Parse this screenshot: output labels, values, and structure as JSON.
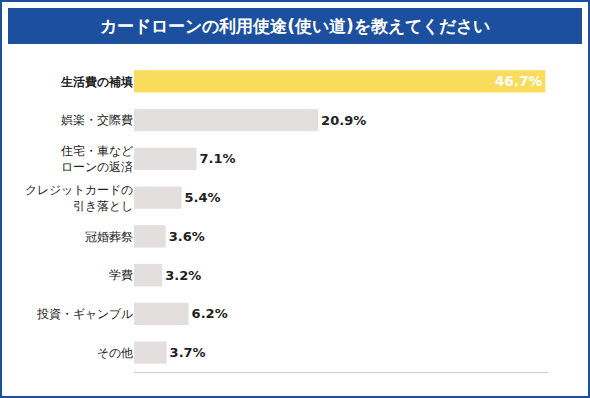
{
  "chart_data": {
    "type": "bar",
    "title": "カードローンの利用使途(使い道)を教えてください",
    "orientation": "horizontal",
    "categories": [
      "生活費の補填",
      "娯楽・交際費",
      "住宅・車など\nローンの返済",
      "クレジットカードの\n引き落とし",
      "冠婚葬祭",
      "学費",
      "投資・ギャンブル",
      "その他"
    ],
    "values": [
      46.7,
      20.9,
      7.1,
      5.4,
      3.6,
      3.2,
      6.2,
      3.7
    ],
    "value_labels": [
      "46.7%",
      "20.9%",
      "7.1%",
      "5.4%",
      "3.6%",
      "3.2%",
      "6.2%",
      "3.7%"
    ],
    "colors": [
      "#f9dc5c",
      "#e3dfdf",
      "#e3dfdf",
      "#e3dfdf",
      "#e3dfdf",
      "#e3dfdf",
      "#e3dfdf",
      "#e3dfdf"
    ],
    "data_labels": true,
    "tick_labels": "y",
    "grid": false,
    "xlim": [
      0,
      47
    ]
  }
}
